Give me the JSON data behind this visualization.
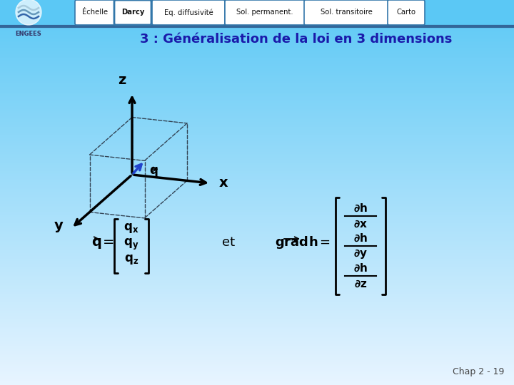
{
  "bg_top_color": "#5bc8f5",
  "bg_bottom_color": "#ddeeff",
  "title": "3 : Généralisation de la loi en 3 dimensions",
  "title_color": "#1a1aaa",
  "tab_labels": [
    "Échelle",
    "Darcy",
    "Eq. diffusivité",
    "Sol. permanent.",
    "Sol. transitoire",
    "Carto"
  ],
  "tab_active": 1,
  "tab_bg": "#ffffff",
  "tab_border_color": "#5599cc",
  "chap_label": "Chap 2 - 19",
  "nav_bar_color": "#5bc8f5",
  "separator_color": "#336699",
  "axis_color": "#000000",
  "vector_color": "#2244cc",
  "cube_color": "#334455"
}
